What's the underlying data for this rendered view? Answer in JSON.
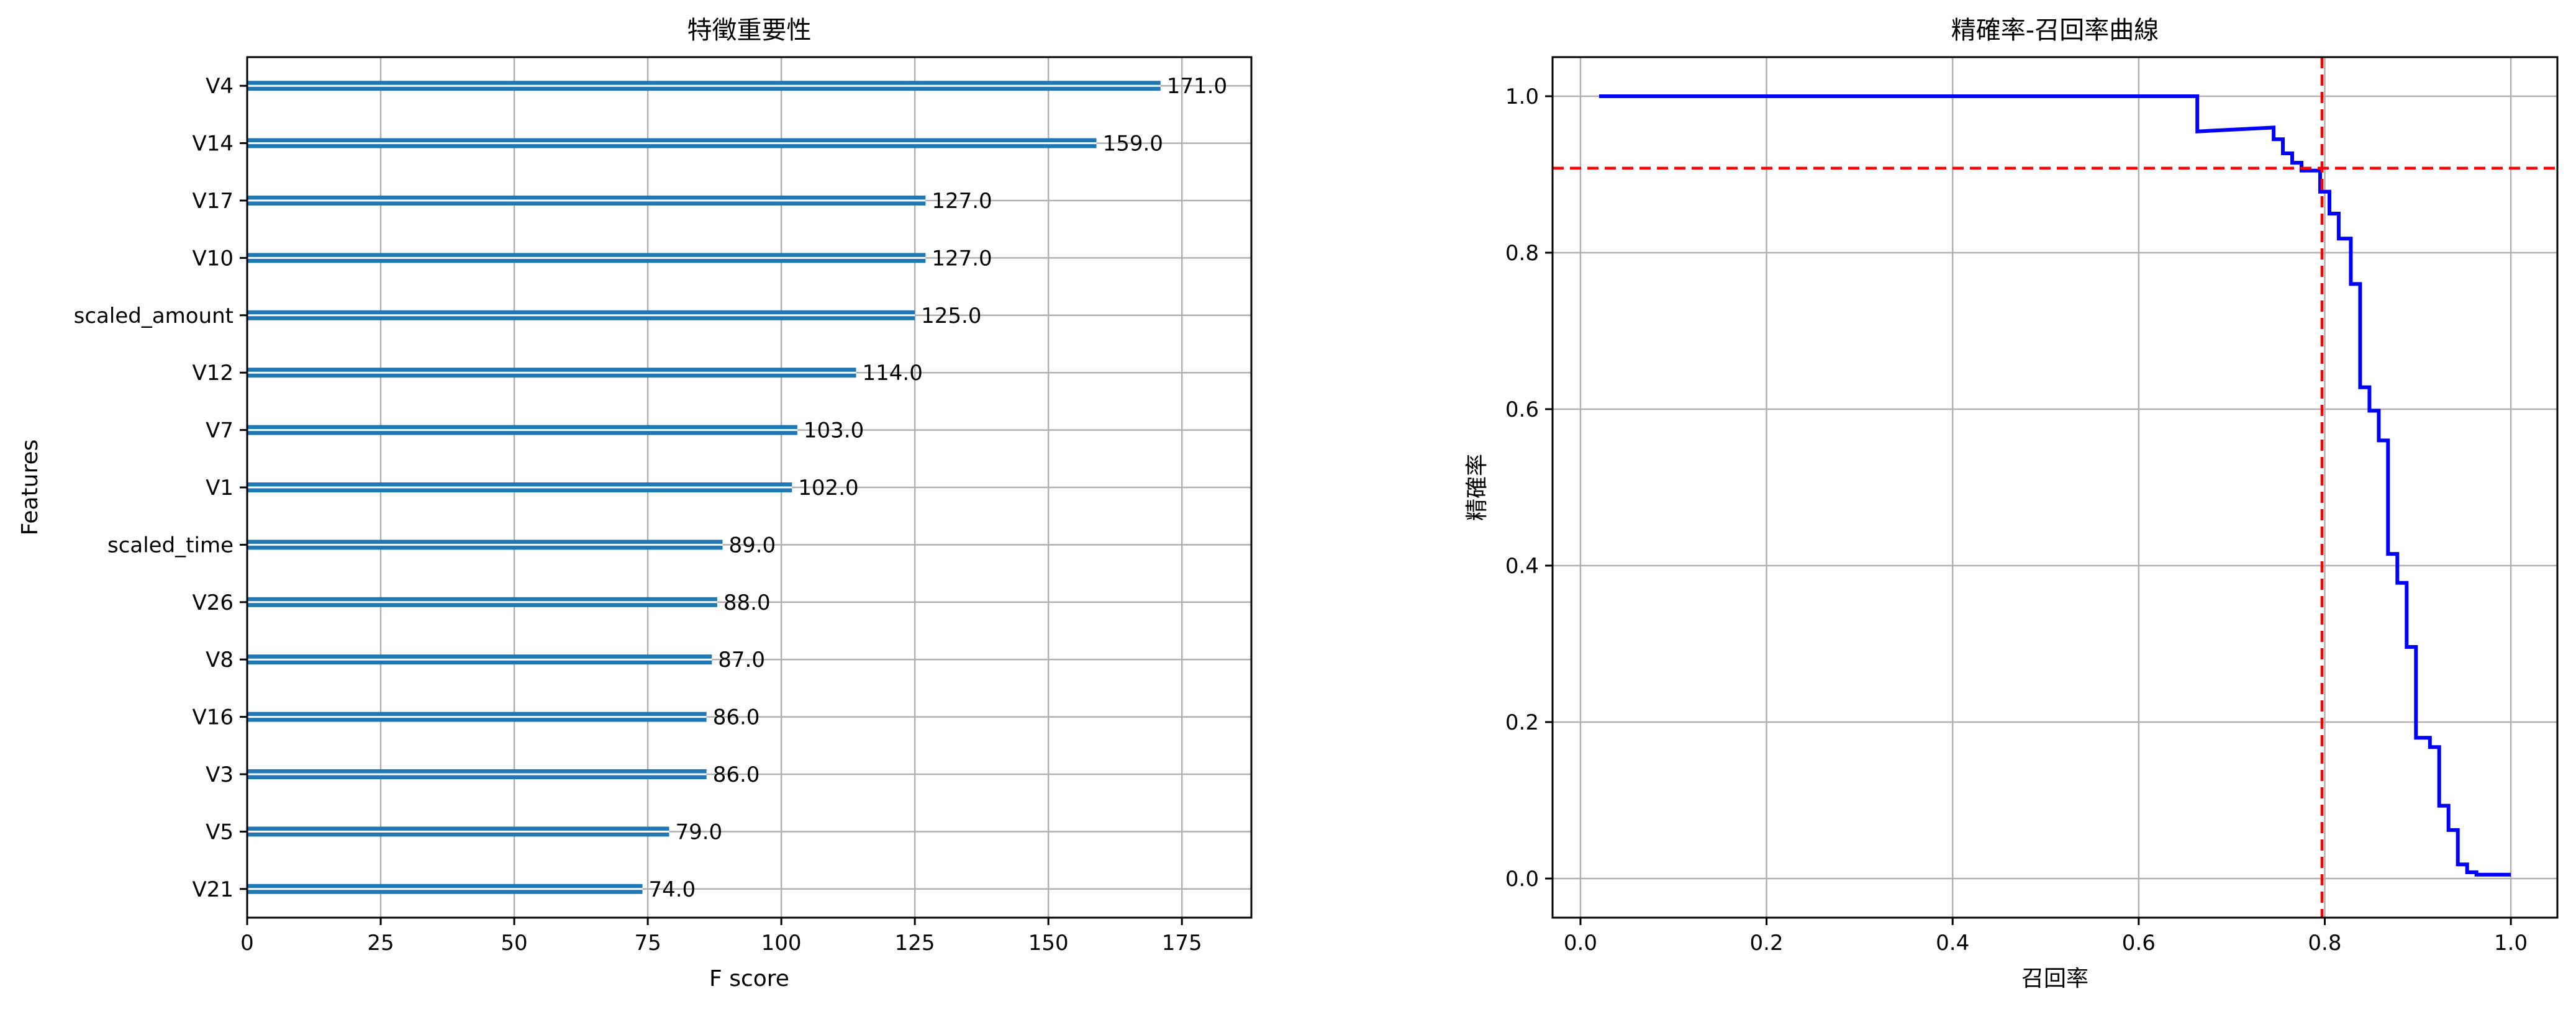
{
  "chart_data": [
    {
      "type": "bar",
      "orientation": "horizontal",
      "title": "特徵重要性",
      "xlabel": "F score",
      "ylabel": "Features",
      "xlim": [
        0,
        188
      ],
      "xticks": [
        0,
        25,
        50,
        75,
        100,
        125,
        150,
        175
      ],
      "grid": true,
      "bar_color": "#1f77b4",
      "categories": [
        "V4",
        "V14",
        "V17",
        "V10",
        "scaled_amount",
        "V12",
        "V7",
        "V1",
        "scaled_time",
        "V26",
        "V8",
        "V16",
        "V3",
        "V5",
        "V21"
      ],
      "values": [
        171,
        159,
        127,
        127,
        125,
        114,
        103,
        102,
        89,
        88,
        87,
        86,
        86,
        79,
        74
      ],
      "value_labels": [
        "171.0",
        "159.0",
        "127.0",
        "127.0",
        "125.0",
        "114.0",
        "103.0",
        "102.0",
        "89.0",
        "88.0",
        "87.0",
        "86.0",
        "86.0",
        "79.0",
        "74.0"
      ]
    },
    {
      "type": "line",
      "title": "精確率-召回率曲線",
      "xlabel": "召回率",
      "ylabel": "精確率",
      "xlim": [
        -0.03,
        1.05
      ],
      "ylim": [
        -0.05,
        1.05
      ],
      "xticks": [
        "0.0",
        "0.2",
        "0.4",
        "0.6",
        "0.8",
        "1.0"
      ],
      "yticks": [
        "0.0",
        "0.2",
        "0.4",
        "0.6",
        "0.8",
        "1.0"
      ],
      "grid": true,
      "line_color": "#0000ff",
      "ref_color": "#ff0000",
      "step": true,
      "x": [
        0.02,
        0.663,
        0.663,
        0.745,
        0.745,
        0.755,
        0.755,
        0.765,
        0.765,
        0.775,
        0.775,
        0.795,
        0.795,
        0.805,
        0.805,
        0.815,
        0.815,
        0.828,
        0.828,
        0.838,
        0.838,
        0.848,
        0.848,
        0.858,
        0.858,
        0.868,
        0.868,
        0.878,
        0.878,
        0.888,
        0.888,
        0.898,
        0.898,
        0.913,
        0.913,
        0.923,
        0.923,
        0.933,
        0.933,
        0.943,
        0.943,
        0.953,
        0.953,
        0.963,
        0.963,
        1.0
      ],
      "y": [
        1.0,
        1.0,
        0.955,
        0.96,
        0.945,
        0.945,
        0.927,
        0.927,
        0.915,
        0.915,
        0.905,
        0.905,
        0.878,
        0.878,
        0.85,
        0.85,
        0.818,
        0.818,
        0.76,
        0.76,
        0.628,
        0.628,
        0.598,
        0.598,
        0.56,
        0.56,
        0.415,
        0.415,
        0.378,
        0.378,
        0.296,
        0.296,
        0.18,
        0.18,
        0.168,
        0.168,
        0.093,
        0.093,
        0.062,
        0.062,
        0.018,
        0.018,
        0.008,
        0.008,
        0.005,
        0.005
      ],
      "ref_x": 0.797,
      "ref_y": 0.908
    }
  ]
}
